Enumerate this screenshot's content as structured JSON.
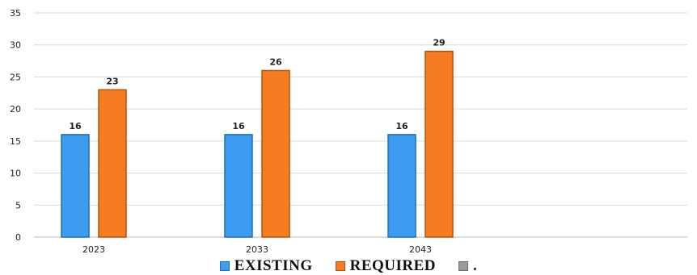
{
  "chart_data": {
    "type": "bar",
    "categories": [
      "2023",
      "2033",
      "2043",
      ""
    ],
    "series": [
      {
        "name": "EXISTING",
        "values": [
          16,
          16,
          16,
          null
        ],
        "color": "#3d9cf0",
        "border": "#1f6fb8"
      },
      {
        "name": "REQUIRED",
        "values": [
          23,
          26,
          29,
          null
        ],
        "color": "#f57c20",
        "border": "#b5500d"
      },
      {
        "name": ".",
        "values": [
          null,
          null,
          null,
          null
        ],
        "color": "#9a9a9a",
        "border": "#6e6e6e"
      }
    ],
    "ylim": [
      0,
      35
    ],
    "yticks": [
      0,
      5,
      10,
      15,
      20,
      25,
      30,
      35
    ],
    "grid": true,
    "legend": "bottom",
    "data_labels": true
  }
}
